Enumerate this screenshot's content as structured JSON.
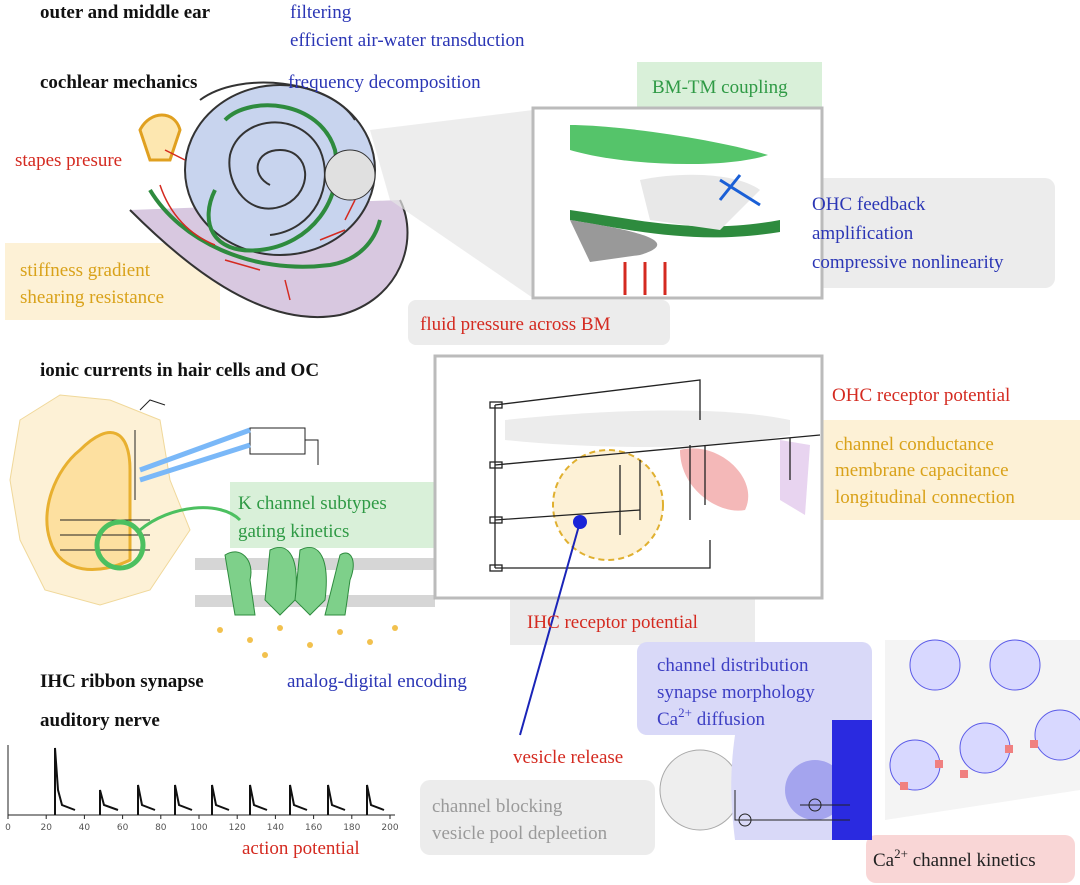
{
  "levels": [
    {
      "title": "outer and middle ear",
      "notes": [
        "filtering",
        "efficient air-water transduction"
      ]
    },
    {
      "title": "cochlear mechanics",
      "notes": [
        "frequency decomposition"
      ]
    },
    {
      "title": "ionic currents in hair cells and OC"
    },
    {
      "title": "IHC ribbon synapse",
      "notes": [
        "analog-digital encoding"
      ]
    },
    {
      "title": "auditory nerve"
    }
  ],
  "labels": {
    "stapes": "stapes presure",
    "stiffness": [
      "stiffness gradient",
      "shearing resistance"
    ],
    "bm_tm": "BM-TM coupling",
    "ohc_feedback": [
      "OHC feedback",
      "amplification",
      "compressive nonlinearity"
    ],
    "fluid": "fluid pressure across BM",
    "ohc_receptor": "OHC receptor potential",
    "membrane": [
      "channel conductance",
      "membrane capacitance",
      "longitudinal connection"
    ],
    "k_channel": [
      "K channel subtypes",
      "gating kinetics"
    ],
    "ihc_receptor": "IHC receptor potential",
    "synapse": [
      "channel distribution",
      "synapse morphology"
    ],
    "ca_diffusion": [
      "Ca",
      "2+",
      " diffusion"
    ],
    "vesicle": "vesicle release",
    "blocking": [
      "channel blocking",
      "vesicle pool depleetion"
    ],
    "action": "action potential",
    "ca_kinetics": [
      "Ca",
      "2+",
      " channel kinetics"
    ]
  },
  "spike_axis": {
    "xlim": [
      0,
      200
    ],
    "xticks": [
      0,
      20,
      40,
      60,
      80,
      100,
      120,
      140,
      160,
      180,
      200
    ]
  }
}
